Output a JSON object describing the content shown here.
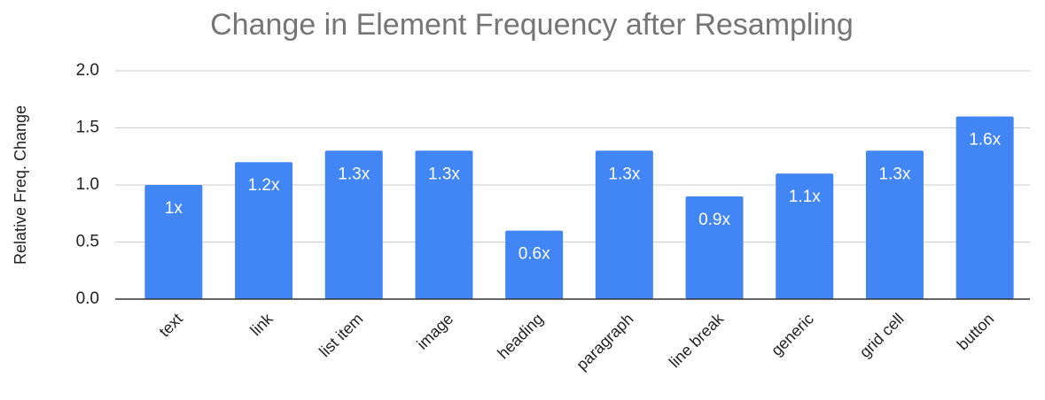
{
  "chart_data": {
    "type": "bar",
    "title": "Change in Element Frequency after Resampling",
    "y_label": "Relative Freq. Change",
    "categories": [
      "text",
      "link",
      "list item",
      "image",
      "heading",
      "paragraph",
      "line break",
      "generic",
      "grid cell",
      "button"
    ],
    "values": [
      1,
      1.2,
      1.3,
      1.3,
      0.6,
      1.3,
      0.9,
      1.1,
      1.3,
      1.6
    ],
    "value_labels": [
      "1x",
      "1.2x",
      "1.3x",
      "1.3x",
      "0.6x",
      "1.3x",
      "0.9x",
      "1.1x",
      "1.3x",
      "1.6x"
    ],
    "color": "#4285f4",
    "ylim": [
      0,
      2
    ],
    "yticks": [
      {
        "value": 0,
        "label": "0.0"
      },
      0.5,
      {
        "value": 1,
        "label": "1.0"
      },
      1.5,
      {
        "value": 2,
        "label": "2.0"
      }
    ],
    "grid": true
  }
}
